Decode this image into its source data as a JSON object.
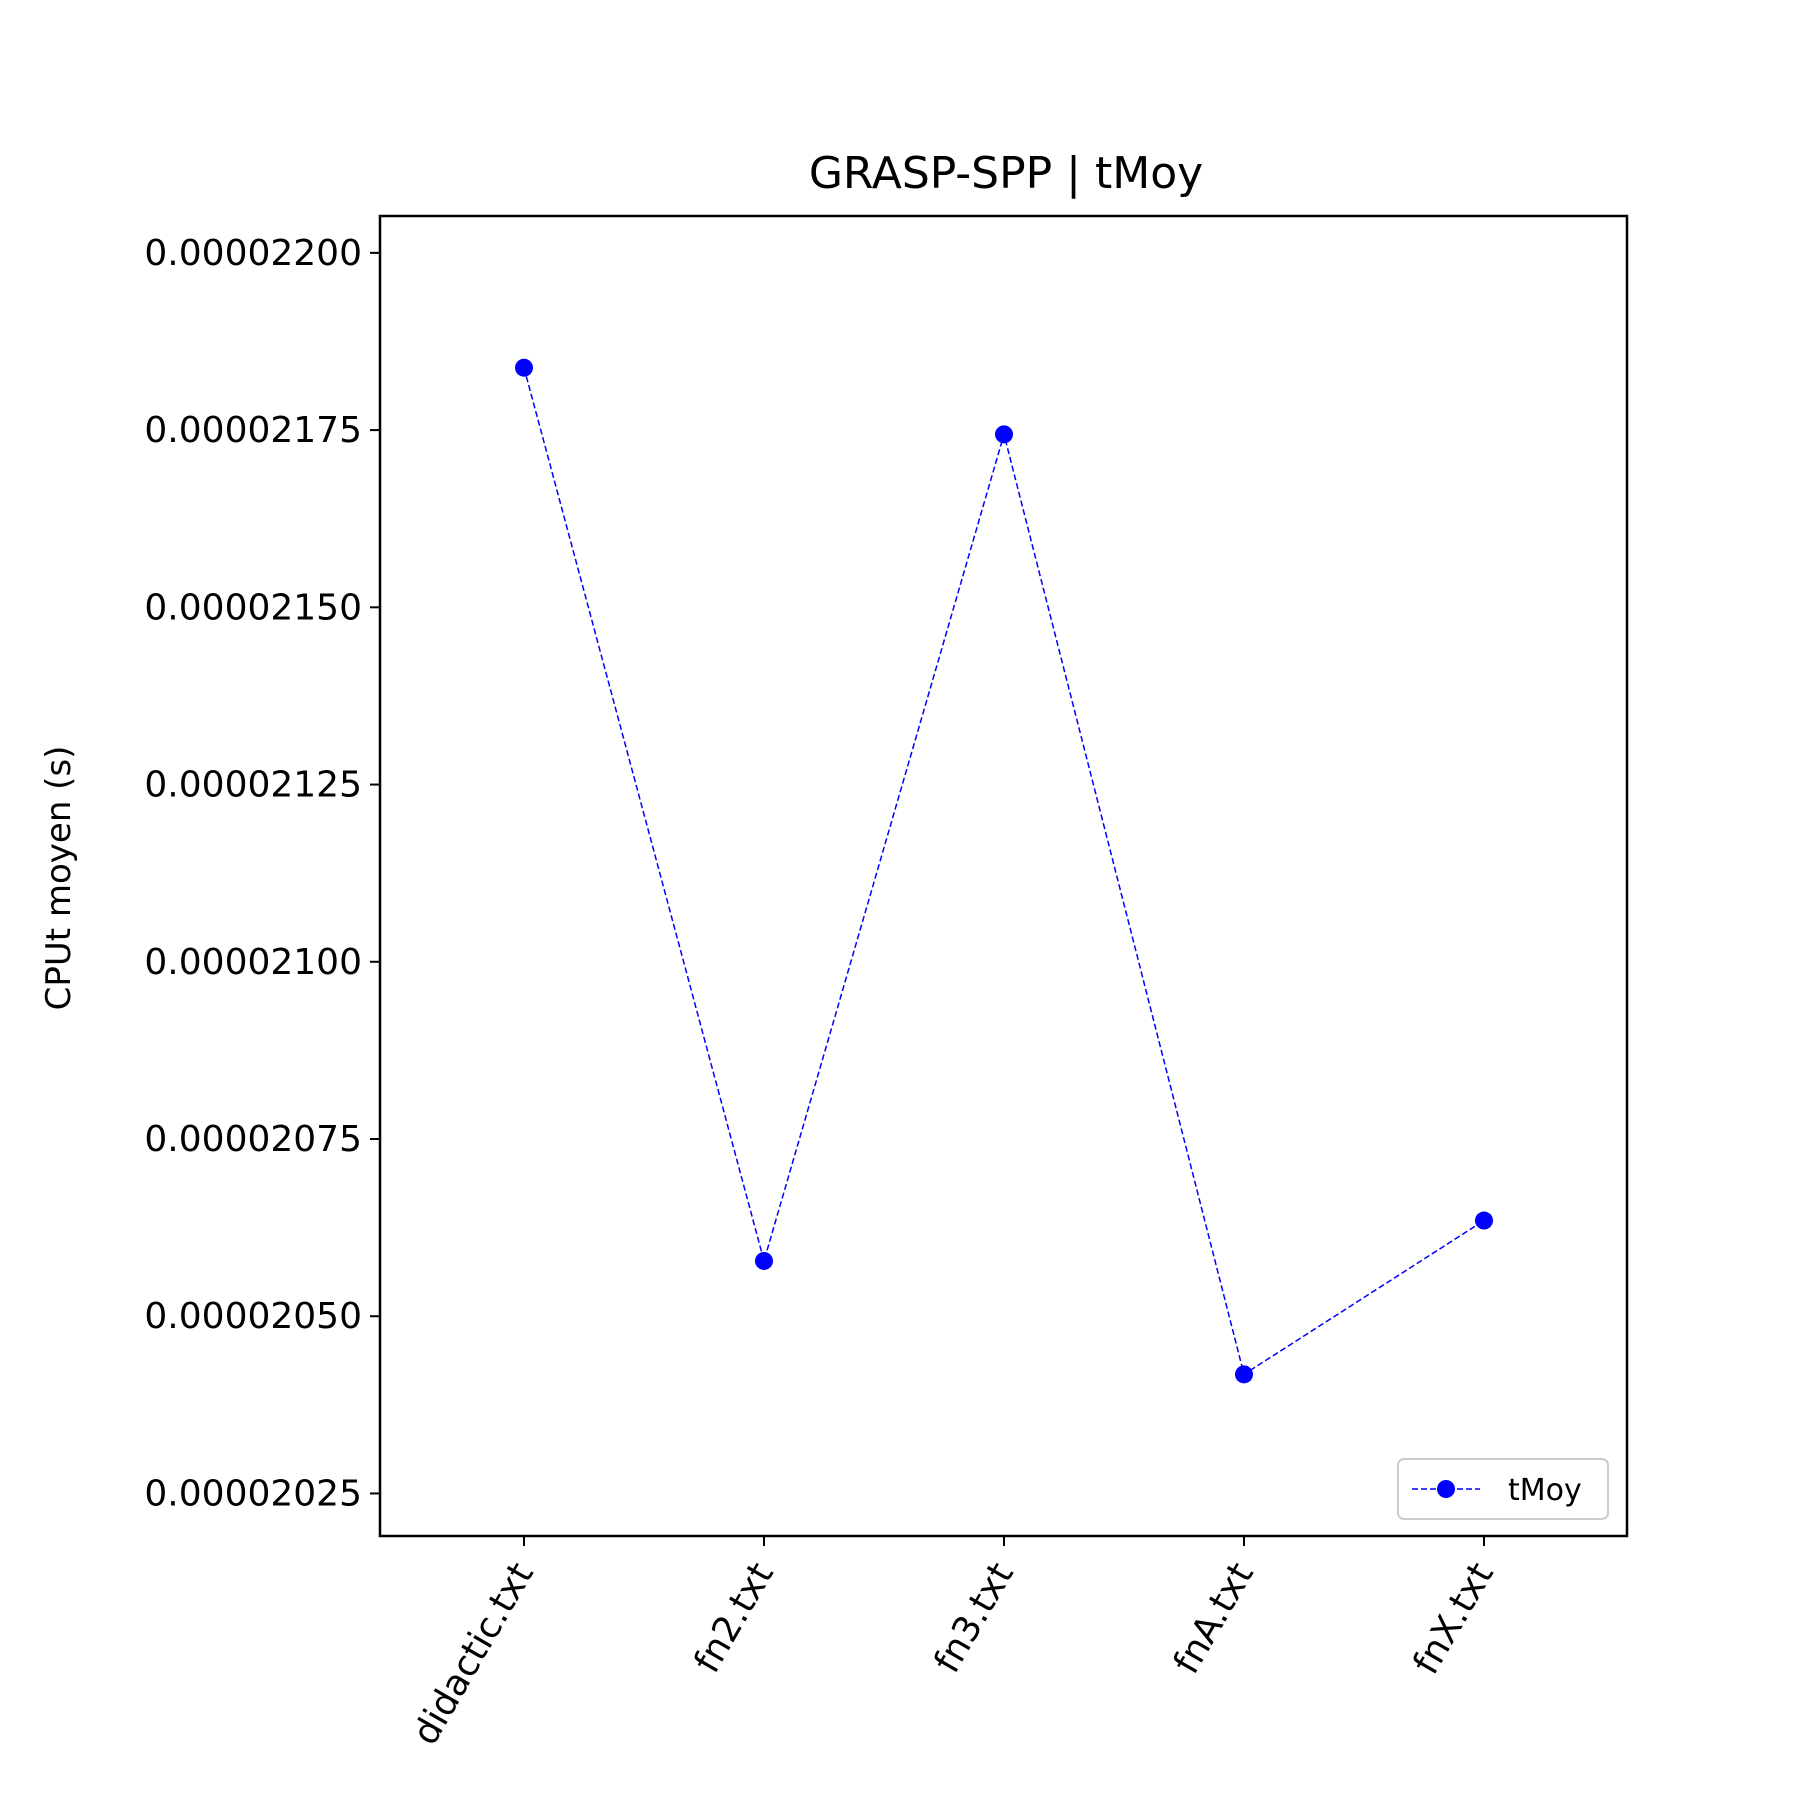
{
  "chart_data": {
    "type": "line",
    "title": "GRASP-SPP | tMoy",
    "xlabel": "",
    "ylabel": "CPUt moyen (s)",
    "categories": [
      "didactic.txt",
      "fn2.txt",
      "fn3.txt",
      "fnA.txt",
      "fnX.txt"
    ],
    "series": [
      {
        "name": "tMoy",
        "values": [
          2.1838e-05,
          2.0578e-05,
          2.1744e-05,
          2.0418e-05,
          2.0635e-05
        ]
      }
    ],
    "ylim": [
      2.019e-05,
      2.2052e-05
    ],
    "yticks": [
      2.025e-05,
      2.05e-05,
      2.075e-05,
      2.1e-05,
      2.125e-05,
      2.15e-05,
      2.175e-05,
      2.2e-05
    ],
    "ytick_labels": [
      "0.00002025",
      "0.00002050",
      "0.00002075",
      "0.00002100",
      "0.00002125",
      "0.00002150",
      "0.00002175",
      "0.00002200"
    ],
    "grid": false,
    "legend": "lower-right",
    "line_style": "dashed",
    "marker": "circle",
    "color": "#0000ff"
  }
}
